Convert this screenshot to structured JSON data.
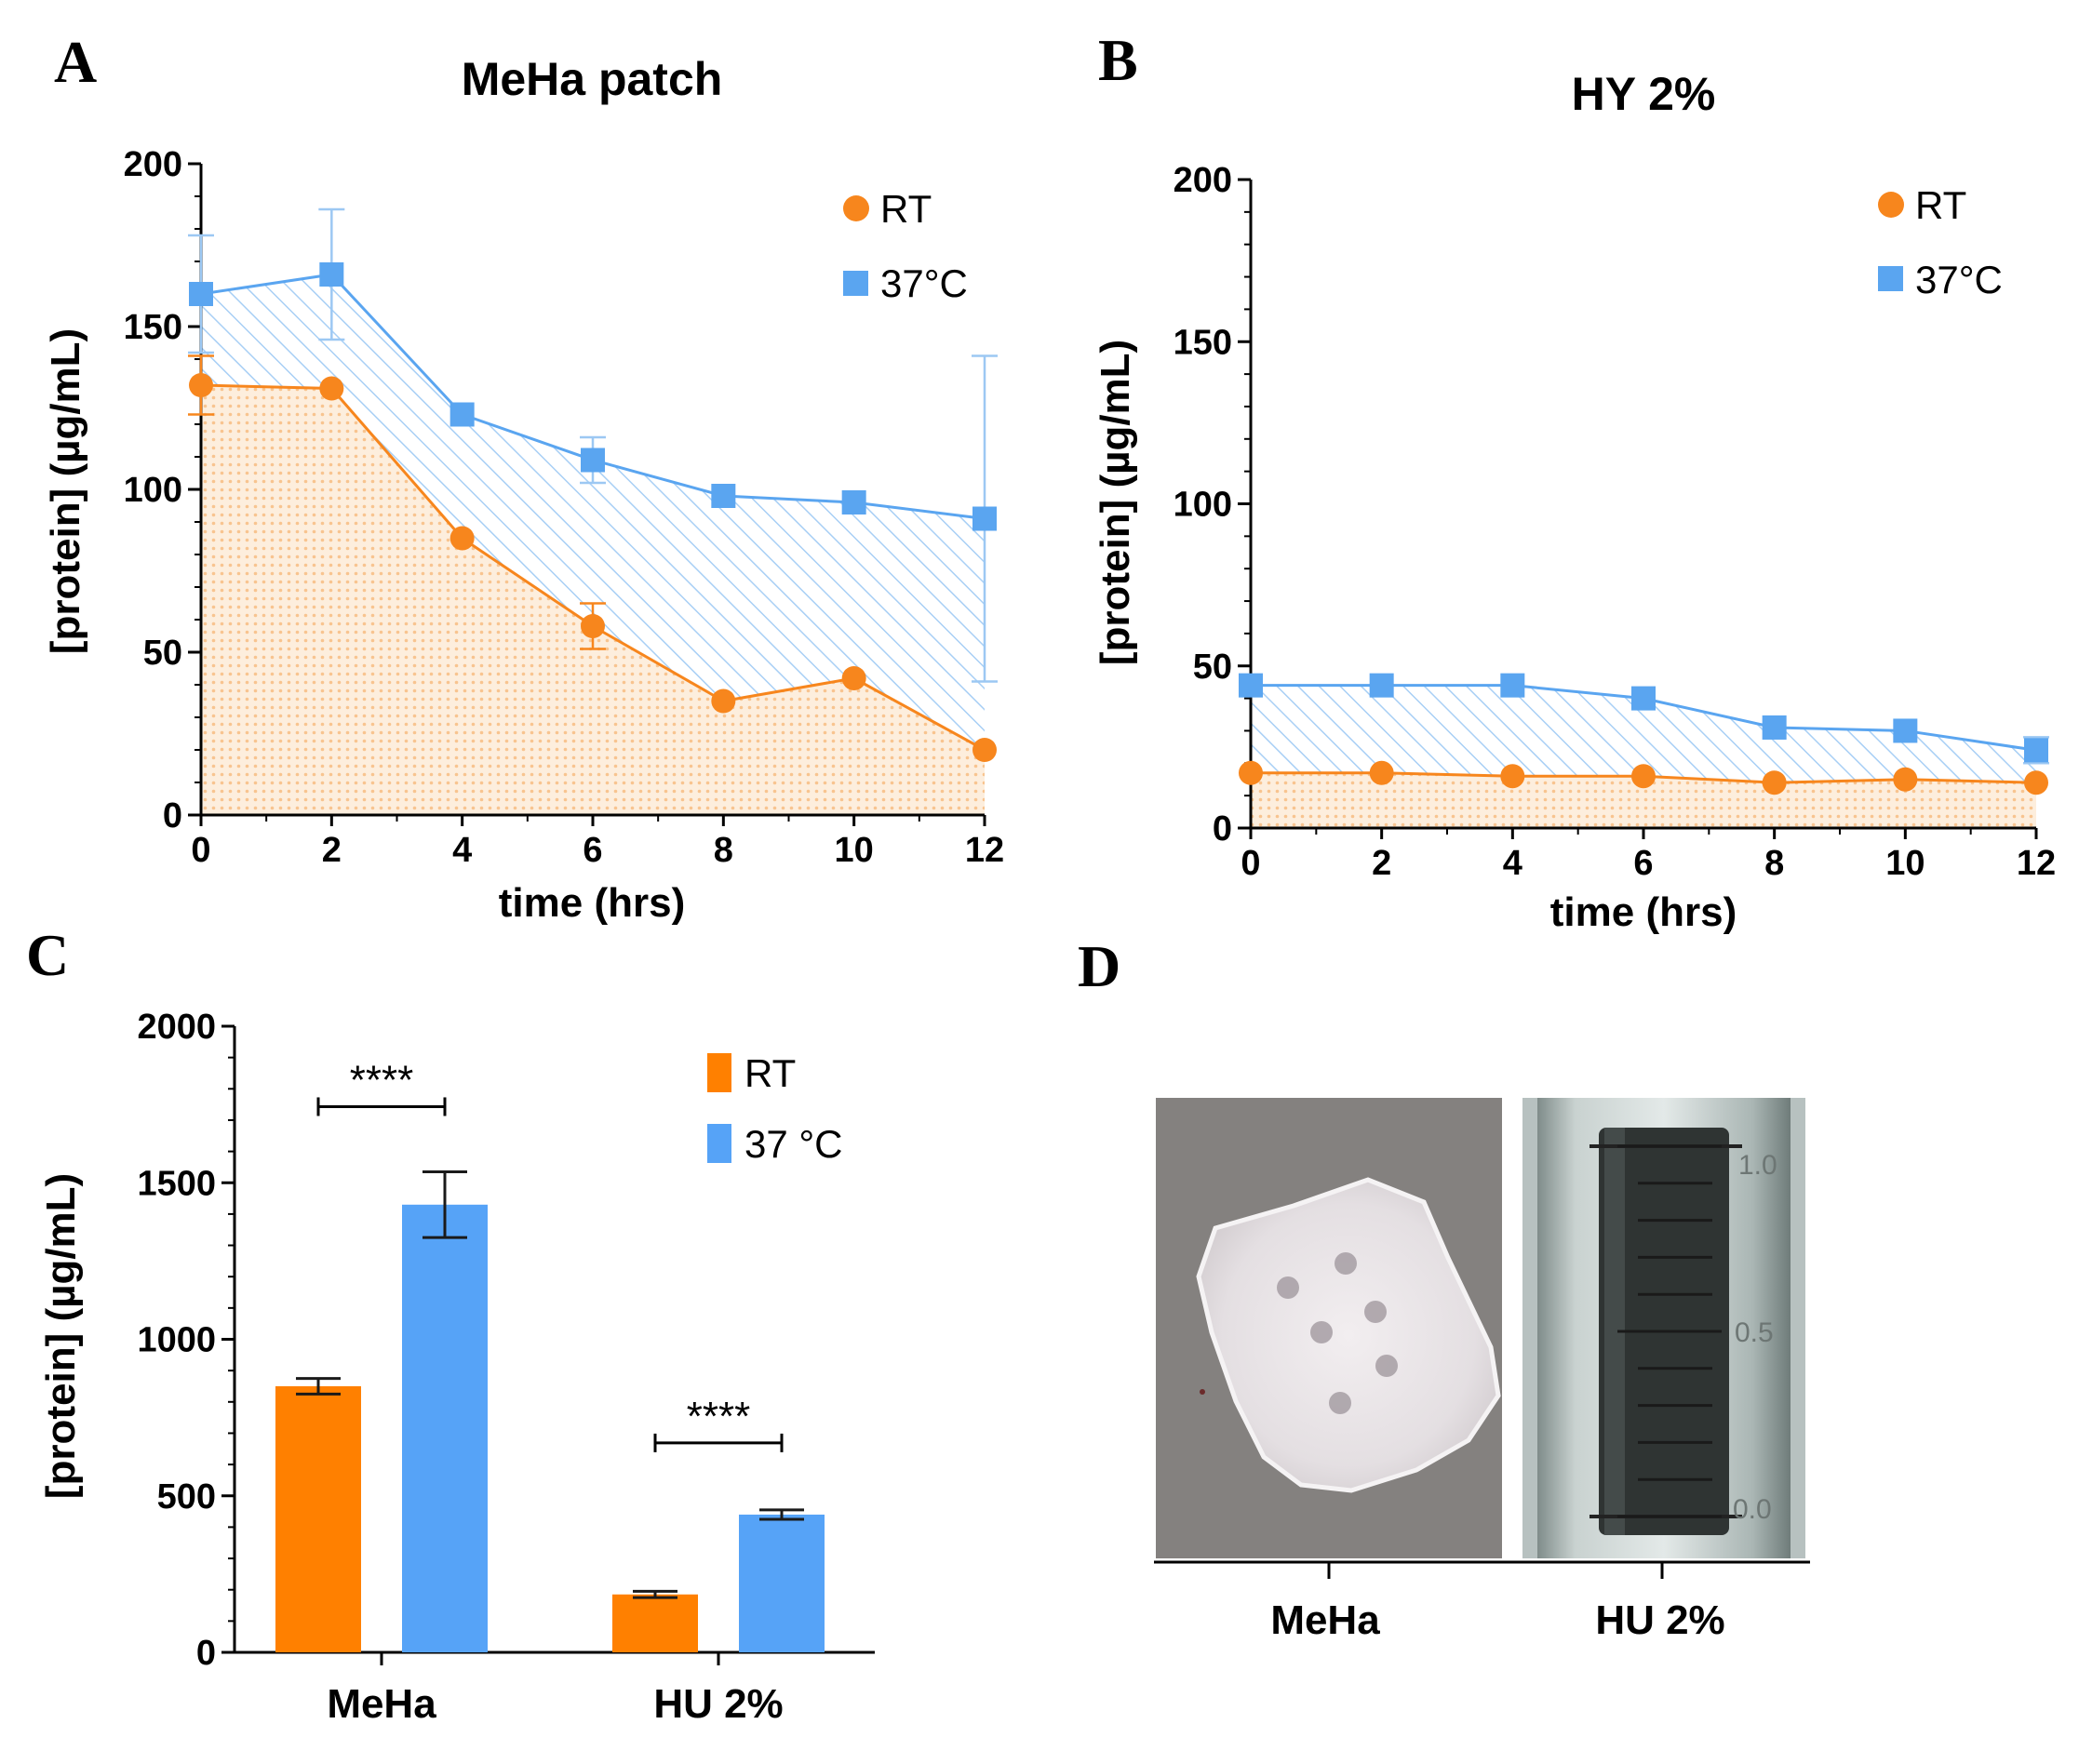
{
  "panels": {
    "a": {
      "letter": "A"
    },
    "b": {
      "letter": "B"
    },
    "c": {
      "letter": "C"
    },
    "d": {
      "letter": "D"
    }
  },
  "chart_data": [
    {
      "panel": "A",
      "type": "line",
      "title": "MeHa patch",
      "xlabel": "time (hrs)",
      "ylabel": "[protein] (µg/mL)",
      "x": [
        0,
        2,
        4,
        6,
        8,
        10,
        12
      ],
      "xlim": [
        0,
        12
      ],
      "ylim": [
        0,
        200
      ],
      "xticks": [
        0,
        2,
        4,
        6,
        8,
        10,
        12
      ],
      "yticks": [
        0,
        50,
        100,
        150,
        200
      ],
      "legend_position": "top-right",
      "grid": false,
      "series": [
        {
          "name": "RT",
          "color": "#F7861D",
          "marker": "circle",
          "values": [
            132,
            131,
            85,
            58,
            35,
            42,
            20
          ],
          "errors": [
            9,
            0,
            0,
            7,
            0,
            0,
            0
          ]
        },
        {
          "name": "37°C",
          "color": "#5AA5F0",
          "marker": "square",
          "values": [
            160,
            166,
            123,
            109,
            98,
            96,
            91
          ],
          "errors": [
            18,
            20,
            0,
            7,
            0,
            0,
            50
          ]
        }
      ]
    },
    {
      "panel": "B",
      "type": "line",
      "title": "HY 2%",
      "xlabel": "time (hrs)",
      "ylabel": "[protein] (µg/mL)",
      "x": [
        0,
        2,
        4,
        6,
        8,
        10,
        12
      ],
      "xlim": [
        0,
        12
      ],
      "ylim": [
        0,
        200
      ],
      "xticks": [
        0,
        2,
        4,
        6,
        8,
        10,
        12
      ],
      "yticks": [
        0,
        50,
        100,
        150,
        200
      ],
      "legend_position": "top-right",
      "grid": false,
      "series": [
        {
          "name": "RT",
          "color": "#F7861D",
          "marker": "circle",
          "values": [
            17,
            17,
            16,
            16,
            14,
            15,
            14
          ],
          "errors": [
            0,
            0,
            0,
            0,
            0,
            0,
            0
          ]
        },
        {
          "name": "37°C",
          "color": "#5AA5F0",
          "marker": "square",
          "values": [
            44,
            44,
            44,
            40,
            31,
            30,
            24
          ],
          "errors": [
            0,
            0,
            0,
            0,
            0,
            0,
            4
          ]
        }
      ]
    },
    {
      "panel": "C",
      "type": "bar",
      "ylabel": "[protein] (µg/mL)",
      "categories": [
        "MeHa",
        "HU 2%"
      ],
      "ylim": [
        0,
        2000
      ],
      "yticks": [
        0,
        500,
        1000,
        1500,
        2000
      ],
      "legend_position": "top-right",
      "grid": false,
      "series": [
        {
          "name": "RT",
          "color": "#FF8000",
          "values": [
            850,
            185
          ],
          "errors": [
            25,
            10
          ]
        },
        {
          "name": "37 °C",
          "color": "#56A3F7",
          "values": [
            1430,
            440
          ],
          "errors": [
            105,
            15
          ]
        }
      ],
      "annotations": [
        {
          "category": "MeHa",
          "text": "****"
        },
        {
          "category": "HU 2%",
          "text": "****"
        }
      ]
    }
  ],
  "photos": {
    "labels": [
      "MeHa",
      "HU 2%"
    ],
    "scale_marks": [
      "1.0",
      "0.5",
      "0.0"
    ]
  }
}
